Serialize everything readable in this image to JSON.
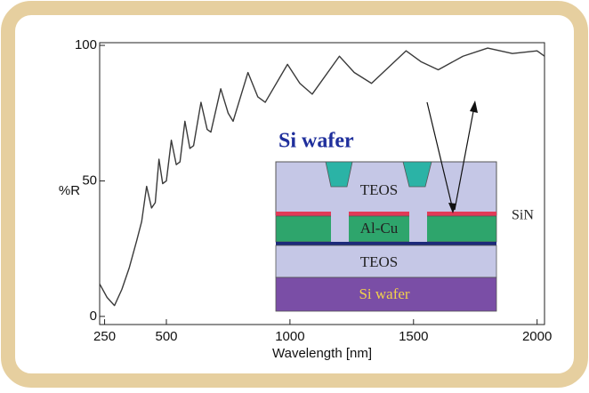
{
  "chart_data": {
    "type": "line",
    "x_label": "Wavelength [nm]",
    "y_label": "%R",
    "x": [
      230,
      260,
      290,
      320,
      350,
      380,
      400,
      420,
      440,
      455,
      470,
      485,
      500,
      520,
      540,
      555,
      575,
      595,
      610,
      640,
      665,
      680,
      720,
      750,
      770,
      830,
      870,
      900,
      990,
      1040,
      1090,
      1200,
      1260,
      1330,
      1470,
      1530,
      1600,
      1700,
      1800,
      1900,
      2000,
      2030
    ],
    "values": [
      12,
      7,
      4,
      10,
      18,
      28,
      35,
      48,
      40,
      42,
      58,
      49,
      50,
      65,
      56,
      57,
      72,
      62,
      63,
      79,
      69,
      68,
      84,
      75,
      72,
      90,
      81,
      79,
      93,
      86,
      82,
      96,
      90,
      86,
      98,
      94,
      91,
      96,
      99,
      97,
      98,
      96
    ],
    "color": "#3a3a3a",
    "xlim": [
      230,
      2030
    ],
    "ylim": [
      -3,
      101
    ],
    "xticks": [
      250,
      500,
      1000,
      1500,
      2000
    ],
    "yticks": [
      0,
      50,
      100
    ],
    "grid": false,
    "inset": {
      "title": "Si wafer",
      "top_layer": "TEOS",
      "metal_layer": "Al-Cu",
      "bottom_layer": "TEOS",
      "substrate": "Si wafer",
      "side_label": "SiN"
    }
  }
}
